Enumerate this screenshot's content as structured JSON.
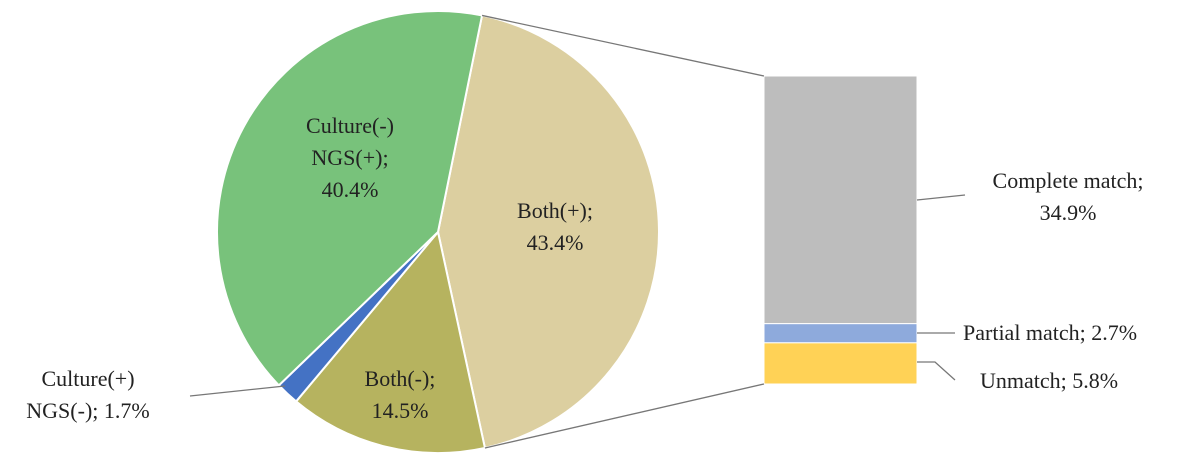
{
  "chart_data": {
    "type": "pie-of-bar",
    "categories": [
      "Both(+);",
      "Both(-);",
      "Culture(+) NGS(-);",
      "Culture(-) NGS(+);"
    ],
    "values": [
      43.4,
      14.5,
      1.7,
      40.4
    ],
    "value_labels": [
      "43.4%",
      "14.5%",
      "1.7%",
      "40.4%"
    ],
    "colors": [
      "#dccfa0",
      "#b6b35f",
      "#4472c4",
      "#78c27b"
    ],
    "breakdown": {
      "categories": [
        "Complete match;",
        "Partial match;",
        "Unmatch;"
      ],
      "values": [
        34.9,
        2.7,
        5.8
      ],
      "value_labels": [
        "34.9%",
        "2.7%",
        "5.8%"
      ],
      "colors": [
        "#bdbdbd",
        "#8eaadc",
        "#ffd256"
      ]
    }
  }
}
